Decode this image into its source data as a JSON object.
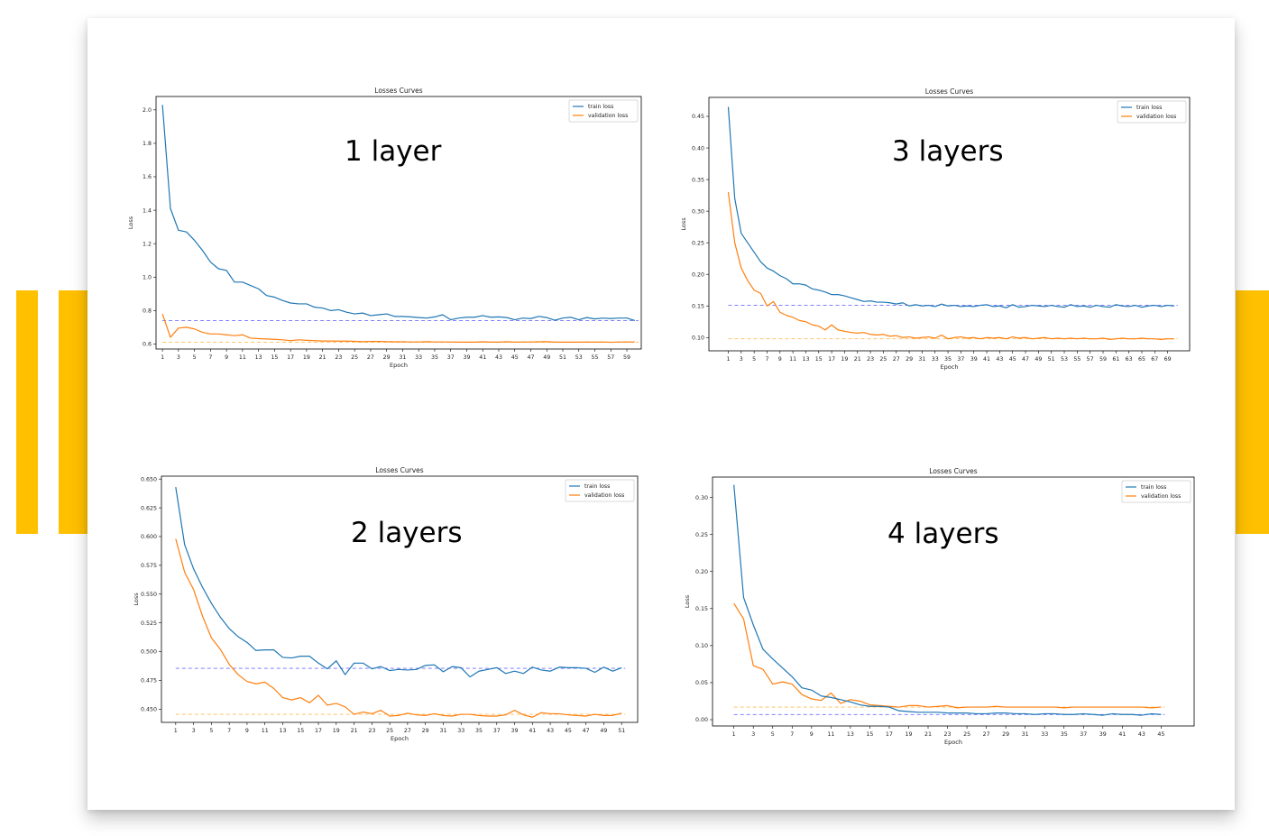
{
  "colors": {
    "accent": "#FFC000",
    "train": "#1f77b4",
    "validation": "#ff7f0e",
    "train_ref": "#6f6fff",
    "val_ref": "#ffbb55"
  },
  "chart_data": [
    {
      "id": "p1",
      "type": "line",
      "title": "Losses Curves",
      "overlay_text": "1 layer",
      "xlabel": "Epoch",
      "ylabel": "Loss",
      "xlim": [
        0.2,
        60.8
      ],
      "ylim": [
        0.57,
        2.08
      ],
      "xticks": [
        1,
        3,
        5,
        7,
        9,
        11,
        13,
        15,
        17,
        19,
        21,
        23,
        25,
        27,
        29,
        31,
        33,
        35,
        37,
        39,
        41,
        43,
        45,
        47,
        49,
        51,
        53,
        55,
        57,
        59
      ],
      "yticks": [
        0.6,
        0.8,
        1.0,
        1.2,
        1.4,
        1.6,
        1.8,
        2.0
      ],
      "ytick_labels": [
        "0.6",
        "0.8",
        "1.0",
        "1.2",
        "1.4",
        "1.6",
        "1.8",
        "2.0"
      ],
      "legend": [
        "train loss",
        "validation loss"
      ],
      "legend_position": "top-right",
      "ref_lines": {
        "train": 0.74,
        "validation": 0.61
      },
      "series": [
        {
          "name": "train loss",
          "x_start": 1,
          "values": [
            2.03,
            1.41,
            1.28,
            1.27,
            1.22,
            1.16,
            1.09,
            1.05,
            1.04,
            0.97,
            0.97,
            0.95,
            0.93,
            0.89,
            0.88,
            0.86,
            0.845,
            0.84,
            0.84,
            0.82,
            0.815,
            0.8,
            0.805,
            0.79,
            0.78,
            0.785,
            0.77,
            0.775,
            0.78,
            0.765,
            0.765,
            0.762,
            0.758,
            0.755,
            0.762,
            0.775,
            0.745,
            0.755,
            0.76,
            0.76,
            0.77,
            0.76,
            0.762,
            0.758,
            0.745,
            0.755,
            0.752,
            0.765,
            0.758,
            0.742,
            0.755,
            0.76,
            0.745,
            0.758,
            0.75,
            0.755,
            0.752,
            0.755,
            0.755,
            0.74
          ]
        },
        {
          "name": "validation loss",
          "x_start": 1,
          "values": [
            0.78,
            0.64,
            0.695,
            0.7,
            0.69,
            0.67,
            0.66,
            0.66,
            0.655,
            0.65,
            0.655,
            0.635,
            0.632,
            0.63,
            0.628,
            0.625,
            0.62,
            0.625,
            0.622,
            0.62,
            0.618,
            0.618,
            0.617,
            0.617,
            0.616,
            0.614,
            0.615,
            0.615,
            0.614,
            0.613,
            0.613,
            0.612,
            0.612,
            0.614,
            0.612,
            0.612,
            0.612,
            0.611,
            0.611,
            0.611,
            0.613,
            0.611,
            0.611,
            0.613,
            0.611,
            0.612,
            0.612,
            0.613,
            0.614,
            0.611,
            0.611,
            0.611,
            0.611,
            0.612,
            0.611,
            0.612,
            0.61,
            0.612,
            0.612,
            0.612
          ]
        }
      ]
    },
    {
      "id": "p2",
      "type": "line",
      "title": "Losses Curves",
      "overlay_text": "3 layers",
      "xlabel": "Epoch",
      "ylabel": "Loss",
      "xlim": [
        -2.0,
        72.4
      ],
      "ylim": [
        0.079,
        0.48
      ],
      "xticks": [
        1,
        3,
        5,
        7,
        9,
        11,
        13,
        15,
        17,
        19,
        21,
        23,
        25,
        27,
        29,
        31,
        33,
        35,
        37,
        39,
        41,
        43,
        45,
        47,
        49,
        51,
        53,
        55,
        57,
        59,
        61,
        63,
        65,
        67,
        69
      ],
      "yticks": [
        0.1,
        0.15,
        0.2,
        0.25,
        0.3,
        0.35,
        0.4,
        0.45
      ],
      "ytick_labels": [
        "0.10",
        "0.15",
        "0.20",
        "0.25",
        "0.30",
        "0.35",
        "0.40",
        "0.45"
      ],
      "legend": [
        "train loss",
        "validation loss"
      ],
      "legend_position": "top-right",
      "ref_lines": {
        "train": 0.151,
        "validation": 0.098
      },
      "series": [
        {
          "name": "train loss",
          "x_start": 1,
          "values": [
            0.465,
            0.32,
            0.265,
            0.25,
            0.235,
            0.22,
            0.21,
            0.205,
            0.198,
            0.193,
            0.185,
            0.185,
            0.183,
            0.177,
            0.175,
            0.172,
            0.168,
            0.168,
            0.166,
            0.163,
            0.16,
            0.157,
            0.158,
            0.156,
            0.156,
            0.155,
            0.153,
            0.155,
            0.15,
            0.152,
            0.15,
            0.151,
            0.149,
            0.153,
            0.15,
            0.151,
            0.149,
            0.15,
            0.149,
            0.151,
            0.152,
            0.149,
            0.15,
            0.147,
            0.152,
            0.148,
            0.149,
            0.151,
            0.15,
            0.149,
            0.151,
            0.149,
            0.148,
            0.152,
            0.149,
            0.15,
            0.148,
            0.151,
            0.149,
            0.148,
            0.152,
            0.15,
            0.149,
            0.151,
            0.148,
            0.15,
            0.151,
            0.149,
            0.151,
            0.15
          ]
        },
        {
          "name": "validation loss",
          "x_start": 1,
          "values": [
            0.33,
            0.25,
            0.21,
            0.19,
            0.175,
            0.17,
            0.15,
            0.157,
            0.14,
            0.135,
            0.132,
            0.127,
            0.125,
            0.12,
            0.118,
            0.112,
            0.12,
            0.112,
            0.11,
            0.108,
            0.107,
            0.108,
            0.105,
            0.104,
            0.105,
            0.102,
            0.103,
            0.1,
            0.101,
            0.099,
            0.1,
            0.101,
            0.099,
            0.104,
            0.098,
            0.1,
            0.101,
            0.099,
            0.1,
            0.098,
            0.1,
            0.099,
            0.1,
            0.098,
            0.101,
            0.099,
            0.1,
            0.098,
            0.099,
            0.1,
            0.098,
            0.099,
            0.098,
            0.099,
            0.098,
            0.099,
            0.098,
            0.098,
            0.099,
            0.097,
            0.098,
            0.099,
            0.098,
            0.098,
            0.099,
            0.098,
            0.098,
            0.097,
            0.098,
            0.098
          ]
        }
      ]
    },
    {
      "id": "p3",
      "type": "line",
      "title": "Losses Curves",
      "overlay_text": "2 layers",
      "xlabel": "Epoch",
      "ylabel": "Loss",
      "xlim": [
        -0.6,
        52.8
      ],
      "ylim": [
        0.4385,
        0.6525
      ],
      "xticks": [
        1,
        3,
        5,
        7,
        9,
        11,
        13,
        15,
        17,
        19,
        21,
        23,
        25,
        27,
        29,
        31,
        33,
        35,
        37,
        39,
        41,
        43,
        45,
        47,
        49,
        51
      ],
      "yticks": [
        0.45,
        0.475,
        0.5,
        0.525,
        0.55,
        0.575,
        0.6,
        0.625,
        0.65
      ],
      "ytick_labels": [
        "0.450",
        "0.475",
        "0.500",
        "0.525",
        "0.550",
        "0.575",
        "0.600",
        "0.625",
        "0.650"
      ],
      "legend": [
        "train loss",
        "validation loss"
      ],
      "legend_position": "top-right",
      "ref_lines": {
        "train": 0.4855,
        "validation": 0.4455
      },
      "series": [
        {
          "name": "train loss",
          "x_start": 1,
          "values": [
            0.643,
            0.593,
            0.572,
            0.556,
            0.542,
            0.53,
            0.52,
            0.513,
            0.508,
            0.501,
            0.5015,
            0.5015,
            0.495,
            0.4945,
            0.496,
            0.496,
            0.49,
            0.485,
            0.492,
            0.48,
            0.49,
            0.49,
            0.485,
            0.487,
            0.4835,
            0.4845,
            0.484,
            0.4845,
            0.488,
            0.4885,
            0.4825,
            0.487,
            0.486,
            0.478,
            0.483,
            0.4845,
            0.486,
            0.481,
            0.483,
            0.481,
            0.4865,
            0.484,
            0.483,
            0.4865,
            0.486,
            0.486,
            0.4855,
            0.482,
            0.4865,
            0.483,
            0.486
          ]
        },
        {
          "name": "validation loss",
          "x_start": 1,
          "values": [
            0.598,
            0.569,
            0.554,
            0.531,
            0.512,
            0.502,
            0.489,
            0.48,
            0.474,
            0.472,
            0.4735,
            0.468,
            0.46,
            0.458,
            0.46,
            0.4555,
            0.462,
            0.4535,
            0.455,
            0.452,
            0.4455,
            0.4475,
            0.446,
            0.449,
            0.444,
            0.4445,
            0.4465,
            0.445,
            0.4445,
            0.446,
            0.4445,
            0.444,
            0.4455,
            0.4455,
            0.4445,
            0.444,
            0.444,
            0.445,
            0.449,
            0.445,
            0.443,
            0.447,
            0.446,
            0.446,
            0.445,
            0.4445,
            0.444,
            0.4455,
            0.4445,
            0.4445,
            0.4465
          ]
        }
      ]
    },
    {
      "id": "p4",
      "type": "line",
      "title": "Losses Curves",
      "overlay_text": "4 layers",
      "xlabel": "Epoch",
      "ylabel": "Loss",
      "xlim": [
        -1.2,
        48.4
      ],
      "ylim": [
        -0.0085,
        0.3275
      ],
      "xticks": [
        1,
        3,
        5,
        7,
        9,
        11,
        13,
        15,
        17,
        19,
        21,
        23,
        25,
        27,
        29,
        31,
        33,
        35,
        37,
        39,
        41,
        43,
        45
      ],
      "yticks": [
        0.0,
        0.05,
        0.1,
        0.15,
        0.2,
        0.25,
        0.3
      ],
      "ytick_labels": [
        "0.00",
        "0.05",
        "0.10",
        "0.15",
        "0.20",
        "0.25",
        "0.30"
      ],
      "legend": [
        "train loss",
        "validation loss"
      ],
      "legend_position": "top-right",
      "ref_lines": {
        "train": 0.007,
        "validation": 0.017
      },
      "series": [
        {
          "name": "train loss",
          "x_start": 1,
          "values": [
            0.317,
            0.165,
            0.128,
            0.095,
            0.082,
            0.07,
            0.058,
            0.043,
            0.04,
            0.032,
            0.03,
            0.027,
            0.024,
            0.02,
            0.018,
            0.018,
            0.017,
            0.012,
            0.011,
            0.01,
            0.01,
            0.01,
            0.009,
            0.009,
            0.009,
            0.008,
            0.008,
            0.009,
            0.009,
            0.008,
            0.008,
            0.007,
            0.008,
            0.008,
            0.007,
            0.007,
            0.008,
            0.007,
            0.006,
            0.008,
            0.007,
            0.007,
            0.006,
            0.008,
            0.007
          ]
        },
        {
          "name": "validation loss",
          "x_start": 1,
          "values": [
            0.157,
            0.136,
            0.073,
            0.068,
            0.048,
            0.051,
            0.048,
            0.034,
            0.028,
            0.026,
            0.036,
            0.022,
            0.027,
            0.025,
            0.02,
            0.019,
            0.018,
            0.017,
            0.019,
            0.019,
            0.017,
            0.018,
            0.019,
            0.016,
            0.017,
            0.017,
            0.017,
            0.018,
            0.017,
            0.017,
            0.017,
            0.017,
            0.017,
            0.017,
            0.016,
            0.017,
            0.017,
            0.017,
            0.017,
            0.017,
            0.017,
            0.017,
            0.017,
            0.016,
            0.017
          ]
        }
      ]
    }
  ]
}
